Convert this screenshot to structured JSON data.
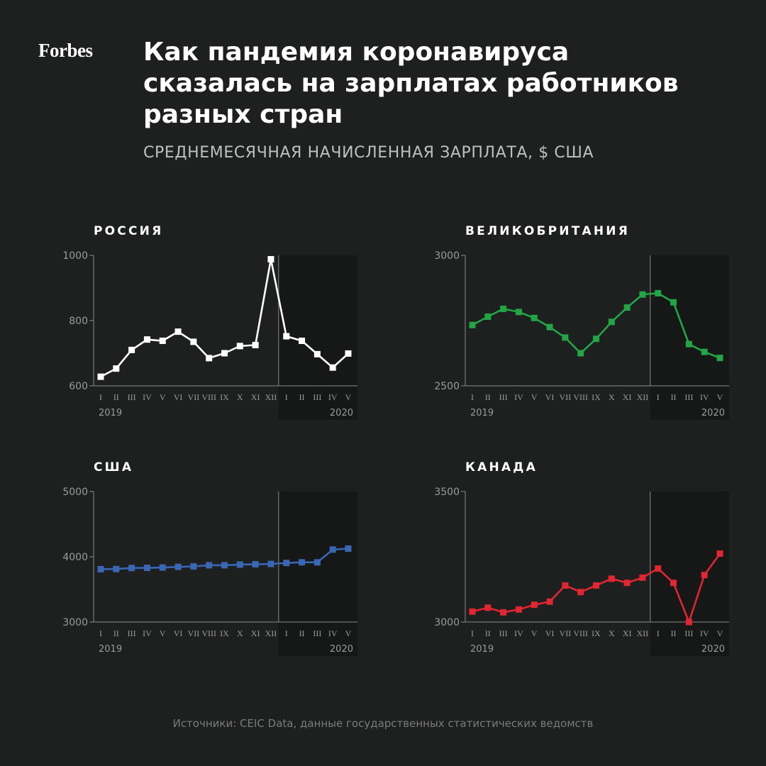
{
  "logo": "Forbes",
  "title_lines": [
    "Как пандемия коронавируса",
    "сказалась на зарплатах работников",
    "разных стран"
  ],
  "subtitle": "СРЕДНЕМЕСЯЧНАЯ НАЧИСЛЕННАЯ ЗАРПЛАТА, $ США",
  "source": "Источники: CEIC Data, данные государственных статистических ведомств",
  "colors": {
    "background": "#1e1f1f",
    "shade": "#161717",
    "axis": "#8a8b8b",
    "tick_text": "#9a9b9b",
    "russia": "#ffffff",
    "uk": "#22a447",
    "usa": "#3a67b3",
    "canada": "#e02633"
  },
  "chart_data": [
    {
      "type": "line",
      "title": "РОССИЯ",
      "color": "#ffffff",
      "ylim": [
        600,
        1000
      ],
      "yticks": [
        600,
        800,
        1000
      ],
      "x": [
        "I",
        "II",
        "III",
        "IV",
        "V",
        "VI",
        "VII",
        "VIII",
        "IX",
        "X",
        "XI",
        "XII",
        "I",
        "II",
        "III",
        "IV",
        "V"
      ],
      "year_labels": [
        "2019",
        "2020"
      ],
      "divider_after_index": 11,
      "values": [
        628,
        653,
        710,
        742,
        738,
        766,
        735,
        685,
        700,
        722,
        725,
        988,
        752,
        738,
        697,
        656,
        699
      ]
    },
    {
      "type": "line",
      "title": "ВЕЛИКОБРИТАНИЯ",
      "color": "#22a447",
      "ylim": [
        2500,
        3000
      ],
      "yticks": [
        2500,
        3000
      ],
      "x": [
        "I",
        "II",
        "III",
        "IV",
        "V",
        "VI",
        "VII",
        "VIII",
        "IX",
        "X",
        "XI",
        "XII",
        "I",
        "II",
        "III",
        "IV",
        "V"
      ],
      "year_labels": [
        "2019",
        "2020"
      ],
      "divider_after_index": 11,
      "values": [
        2733,
        2765,
        2795,
        2783,
        2760,
        2725,
        2685,
        2625,
        2680,
        2745,
        2800,
        2850,
        2855,
        2820,
        2660,
        2630,
        2607
      ]
    },
    {
      "type": "line",
      "title": "США",
      "color": "#3a67b3",
      "ylim": [
        3000,
        5000
      ],
      "yticks": [
        3000,
        4000,
        5000
      ],
      "x": [
        "I",
        "II",
        "III",
        "IV",
        "V",
        "VI",
        "VII",
        "VIII",
        "IX",
        "X",
        "XI",
        "XII",
        "I",
        "II",
        "III",
        "IV",
        "V"
      ],
      "year_labels": [
        "2019",
        "2020"
      ],
      "divider_after_index": 11,
      "values": [
        3810,
        3812,
        3828,
        3830,
        3835,
        3845,
        3852,
        3870,
        3870,
        3880,
        3885,
        3890,
        3905,
        3915,
        3915,
        4110,
        4125
      ]
    },
    {
      "type": "line",
      "title": "КАНАДА",
      "color": "#e02633",
      "ylim": [
        3000,
        3500
      ],
      "yticks": [
        3000,
        3500
      ],
      "x": [
        "I",
        "II",
        "III",
        "IV",
        "V",
        "VI",
        "VII",
        "VIII",
        "IX",
        "X",
        "XI",
        "XII",
        "I",
        "II",
        "III",
        "IV",
        "V"
      ],
      "year_labels": [
        "2019",
        "2020"
      ],
      "divider_after_index": 11,
      "values": [
        3040,
        3055,
        3037,
        3048,
        3066,
        3078,
        3140,
        3115,
        3140,
        3166,
        3150,
        3170,
        3205,
        3150,
        3000,
        3180,
        3262
      ]
    }
  ]
}
